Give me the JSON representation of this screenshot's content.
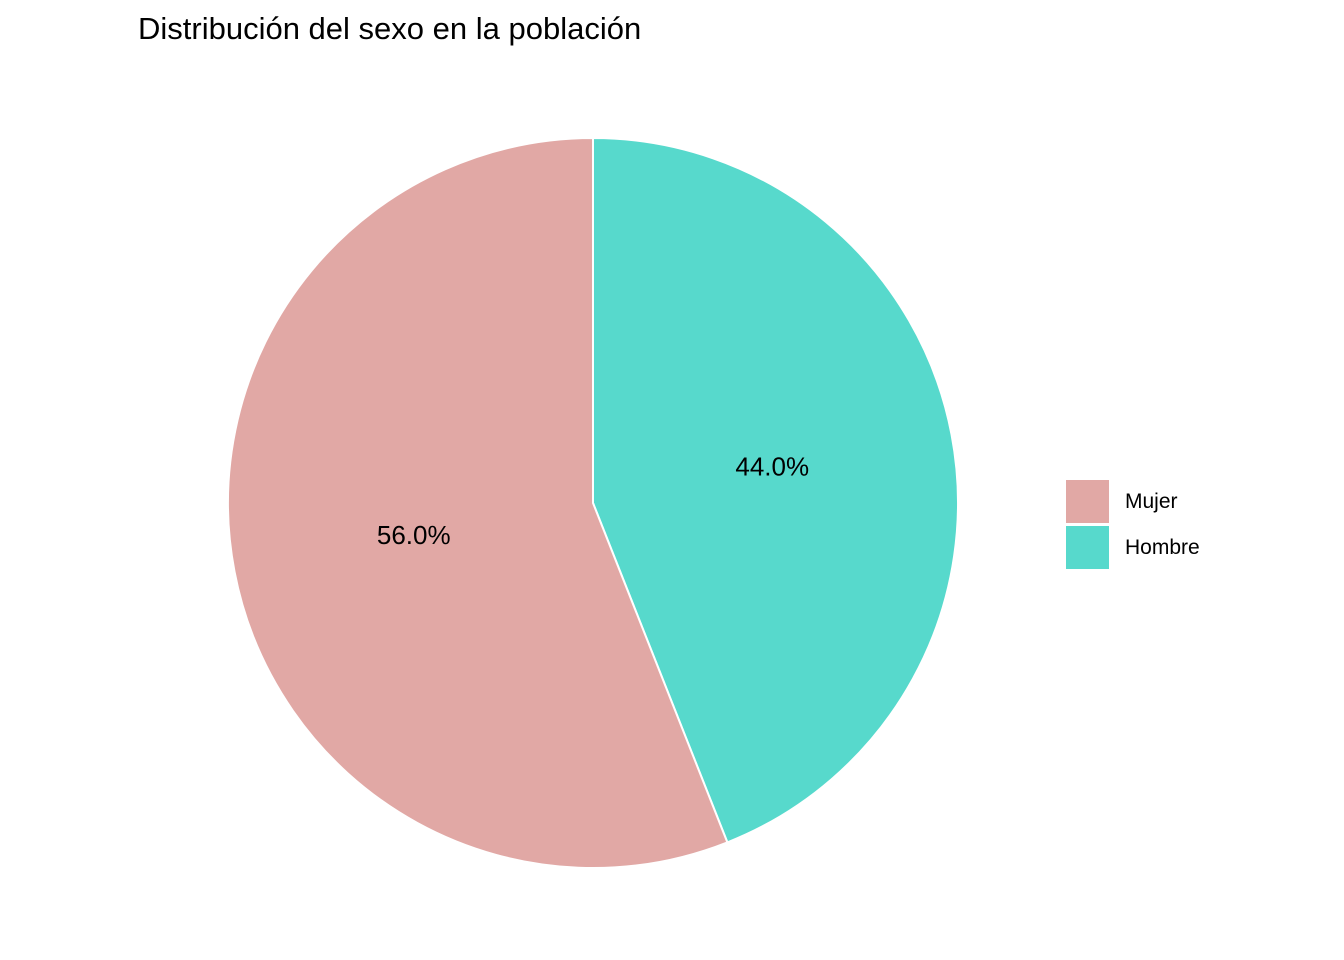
{
  "chart_data": {
    "type": "pie",
    "title": "Distribución del sexo en la población",
    "categories": [
      "Mujer",
      "Hombre"
    ],
    "values": [
      56.0,
      44.0
    ],
    "labels": [
      "56.0%",
      "44.0%"
    ],
    "colors": [
      "#E1A8A5",
      "#57D9CC"
    ],
    "legend_position": "right"
  }
}
